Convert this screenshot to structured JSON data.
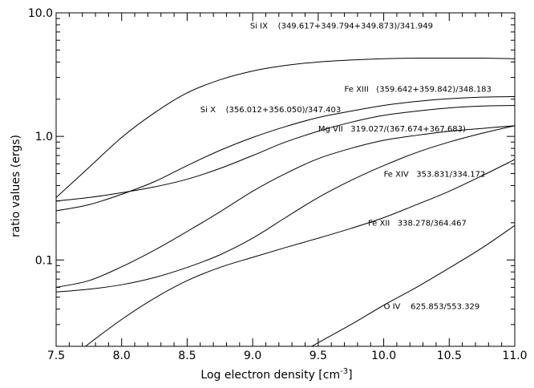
{
  "chart_data": {
    "type": "line",
    "xlabel": "Log electron density [cm",
    "xlabel_sup": "-3",
    "xlabel_end": "]",
    "ylabel": "ratio values (ergs)",
    "xlim": [
      7.5,
      11.0
    ],
    "ylim": [
      0.02,
      10.0
    ],
    "yscale": "log",
    "x_ticks": [
      "7.5",
      "8.0",
      "8.5",
      "9.0",
      "9.5",
      "10.0",
      "10.5",
      "11.0"
    ],
    "y_ticks": [
      "0.1",
      "1.0",
      "10.0"
    ],
    "grid": false,
    "series": [
      {
        "label": "Si IX (349.617+349.794+349.873)/341.949",
        "x": [
          7.5,
          7.75,
          8.0,
          8.25,
          8.5,
          8.75,
          9.0,
          9.25,
          9.5,
          9.75,
          10.0,
          10.25,
          10.5,
          10.75,
          11.0
        ],
        "y": [
          0.32,
          0.56,
          0.98,
          1.55,
          2.25,
          2.87,
          3.38,
          3.75,
          4.0,
          4.15,
          4.25,
          4.3,
          4.3,
          4.3,
          4.25
        ]
      },
      {
        "label": "Fe XIII (359.642+359.842)/348.183",
        "x": [
          7.5,
          7.75,
          8.0,
          8.25,
          8.5,
          8.75,
          9.0,
          9.25,
          9.5,
          9.75,
          10.0,
          10.25,
          10.5,
          10.75,
          11.0
        ],
        "y": [
          0.25,
          0.28,
          0.34,
          0.43,
          0.58,
          0.77,
          0.98,
          1.2,
          1.42,
          1.6,
          1.78,
          1.92,
          2.02,
          2.08,
          2.1
        ]
      },
      {
        "label": "Si X (356.012+356.050)/347.403",
        "x": [
          7.5,
          7.75,
          8.0,
          8.25,
          8.5,
          8.75,
          9.0,
          9.25,
          9.5,
          9.75,
          10.0,
          10.25,
          10.5,
          10.75,
          11.0
        ],
        "y": [
          0.3,
          0.32,
          0.35,
          0.39,
          0.45,
          0.55,
          0.7,
          0.9,
          1.1,
          1.3,
          1.48,
          1.6,
          1.7,
          1.76,
          1.78
        ]
      },
      {
        "label": "Mg VII 319.027/(367.674+367.683)",
        "x": [
          7.5,
          7.75,
          8.0,
          8.25,
          8.5,
          8.75,
          9.0,
          9.25,
          9.5,
          9.75,
          10.0,
          10.25,
          10.5,
          10.75,
          11.0
        ],
        "y": [
          0.06,
          0.068,
          0.088,
          0.12,
          0.17,
          0.245,
          0.36,
          0.5,
          0.66,
          0.8,
          0.93,
          1.02,
          1.1,
          1.16,
          1.22
        ]
      },
      {
        "label": "Fe XIV 353.831/334.172",
        "x": [
          7.5,
          7.75,
          8.0,
          8.25,
          8.5,
          8.75,
          9.0,
          9.25,
          9.5,
          9.75,
          10.0,
          10.25,
          10.5,
          10.75,
          11.0
        ],
        "y": [
          0.055,
          0.058,
          0.063,
          0.072,
          0.087,
          0.11,
          0.15,
          0.22,
          0.32,
          0.44,
          0.58,
          0.74,
          0.9,
          1.06,
          1.22
        ]
      },
      {
        "label": "Fe XII 338.278/364.467",
        "x": [
          7.5,
          7.75,
          8.0,
          8.25,
          8.5,
          8.75,
          9.0,
          9.25,
          9.5,
          9.75,
          10.0,
          10.25,
          10.5,
          10.75,
          11.0
        ],
        "y": [
          0.013,
          0.021,
          0.033,
          0.049,
          0.068,
          0.087,
          0.105,
          0.126,
          0.15,
          0.18,
          0.22,
          0.28,
          0.36,
          0.48,
          0.65
        ]
      },
      {
        "label": "O IV 625.853/553.329",
        "x": [
          9.45,
          9.75,
          10.0,
          10.25,
          10.5,
          10.75,
          11.0
        ],
        "y": [
          0.02,
          0.03,
          0.043,
          0.06,
          0.086,
          0.125,
          0.19
        ]
      }
    ],
    "annotations": [
      {
        "text": "Si IX    (349.617+349.794+349.873)/341.949",
        "x": 8.98,
        "y": 7.5
      },
      {
        "text": "Fe XIII   (359.642+359.842)/348.183",
        "x": 9.7,
        "y": 2.3
      },
      {
        "text": "Si X    (356.012+356.050)/347.403",
        "x": 8.6,
        "y": 1.57
      },
      {
        "text": "Mg VII   319.027/(367.674+367.683)",
        "x": 9.5,
        "y": 1.1
      },
      {
        "text": "Fe XIV   353.831/334.172",
        "x": 10.0,
        "y": 0.47
      },
      {
        "text": "Fe XII   338.278/364.467",
        "x": 9.88,
        "y": 0.19
      },
      {
        "text": "O IV    625.853/553.329",
        "x": 10.0,
        "y": 0.04
      }
    ]
  }
}
